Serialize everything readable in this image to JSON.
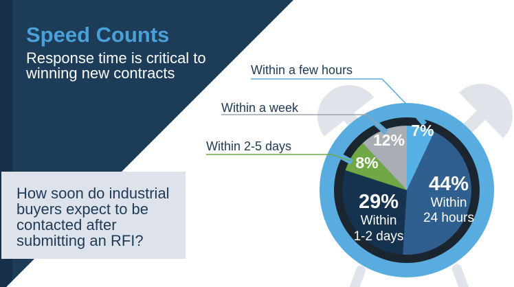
{
  "header": {
    "title": "Speed Counts",
    "subtitle_lines": [
      "Response time is critical to",
      "winning new contracts"
    ]
  },
  "question": {
    "lines": [
      "How soon do industrial",
      "buyers expect to be",
      "contacted after",
      "submitting an RFI?"
    ]
  },
  "callouts": [
    {
      "label": "Within a few hours",
      "line_color": "#57ACE0"
    },
    {
      "label": "Within a week",
      "line_color": "#9CA2A9"
    },
    {
      "label": "Within 2-5 days",
      "line_color": "#6FA843"
    }
  ],
  "colors": {
    "background_navy": "#1C3C58",
    "left_accent_bar": "#17304A",
    "title_blue": "#4BA1D7",
    "question_box_gray": "#DEE3EB",
    "clock_outer_ring_blue": "#58ACE0",
    "clock_inner_ring_dark": "#1B2530",
    "bell_gray": "#DFE4EA",
    "label_navy": "#1E3A56",
    "slice_text": "#FFFFFF"
  },
  "chart_data": {
    "type": "pie",
    "title": "Speed Counts",
    "question": "How soon do industrial buyers expect to be contacted after submitting an RFI?",
    "start_angle_deg": 0,
    "direction": "clockwise",
    "slices": [
      {
        "label": "Within a few hours",
        "value": 7,
        "pct_label": "7%",
        "color": "#56B1E7"
      },
      {
        "label": "Within 24 hours",
        "value": 44,
        "pct_label": "44%",
        "color": "#2F5F8E",
        "label_lines": [
          "Within",
          "24 hours"
        ]
      },
      {
        "label": "Within 1-2 days",
        "value": 29,
        "pct_label": "29%",
        "color": "#15324E",
        "label_lines": [
          "Within",
          "1-2 days"
        ]
      },
      {
        "label": "Within 2-5 days",
        "value": 8,
        "pct_label": "8%",
        "color": "#6FA844"
      },
      {
        "label": "Within a week",
        "value": 12,
        "pct_label": "12%",
        "color": "#A9AEB5"
      }
    ]
  }
}
